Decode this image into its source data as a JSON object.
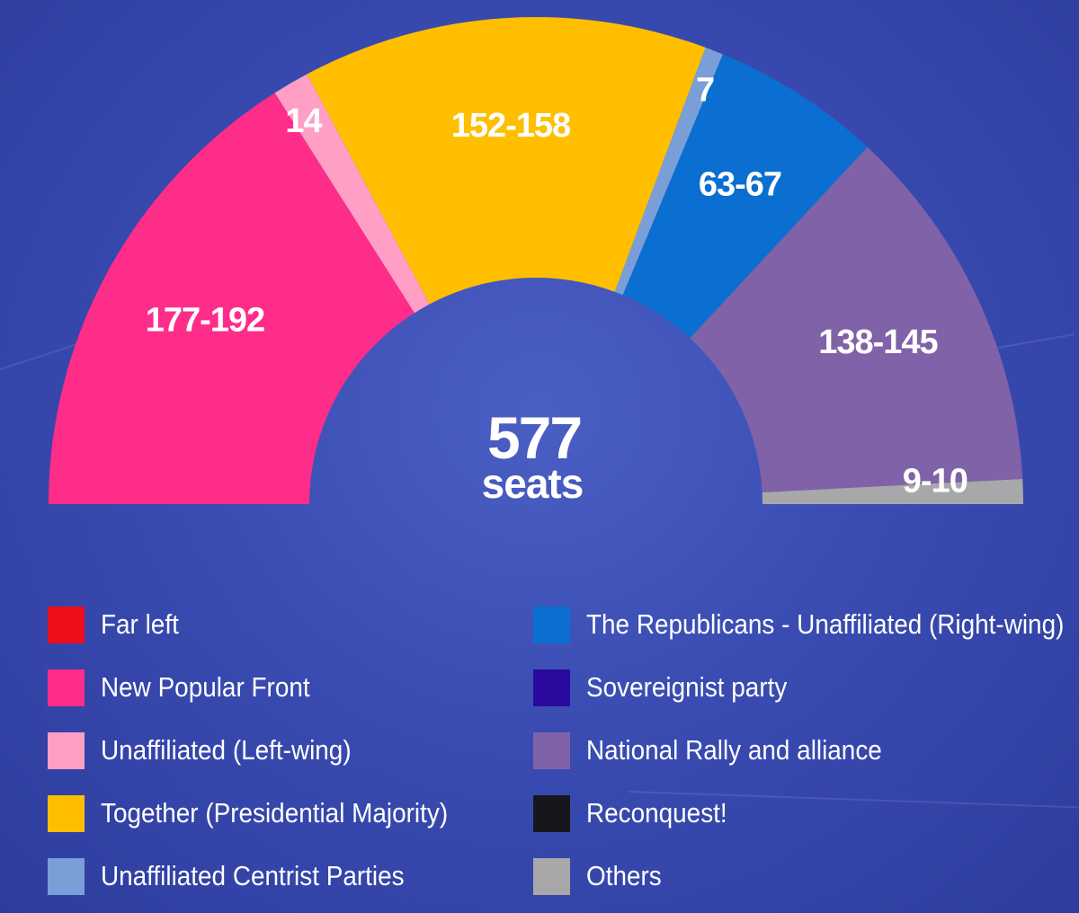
{
  "chart_data": {
    "type": "pie",
    "variant": "semicircle",
    "total": {
      "value": "577",
      "unit": "seats"
    },
    "segments": [
      {
        "label": "177-192",
        "party": "New Popular Front",
        "value": 184.5,
        "color": "#ff2d8a"
      },
      {
        "label": "14",
        "party": "Unaffiliated (Left-wing)",
        "value": 14,
        "color": "#ff9fc6"
      },
      {
        "label": "152-158",
        "party": "Together (Presidential Majority)",
        "value": 155,
        "color": "#ffbf00"
      },
      {
        "label": "7",
        "party": "Unaffiliated Centrist Parties",
        "value": 7,
        "color": "#7a9fd8"
      },
      {
        "label": "63-67",
        "party": "The Republicans - Unaffiliated (Right-wing)",
        "value": 65,
        "color": "#0a6fd0"
      },
      {
        "label": "138-145",
        "party": "National Rally and alliance",
        "value": 141.5,
        "color": "#8062a8"
      },
      {
        "label": "9-10",
        "party": "Others",
        "value": 9.5,
        "color": "#a8a8aa"
      }
    ],
    "legend": {
      "placement": "bottom",
      "left": [
        {
          "label": "Far left",
          "color": "#ee0d1b"
        },
        {
          "label": "New Popular Front",
          "color": "#ff2d8a"
        },
        {
          "label": "Unaffiliated (Left-wing)",
          "color": "#ff9fc6"
        },
        {
          "label": "Together (Presidential Majority)",
          "color": "#ffbf00"
        },
        {
          "label": "Unaffiliated Centrist Parties",
          "color": "#7a9fd8"
        }
      ],
      "right": [
        {
          "label": "The Republicans - Unaffiliated (Right-wing)",
          "color": "#0a6fd0"
        },
        {
          "label": "Sovereignist party",
          "color": "#2a0a9e"
        },
        {
          "label": "National Rally and alliance",
          "color": "#8062a8"
        },
        {
          "label": "Reconquest!",
          "color": "#15171c"
        },
        {
          "label": "Others",
          "color": "#a8a8aa"
        }
      ]
    }
  }
}
